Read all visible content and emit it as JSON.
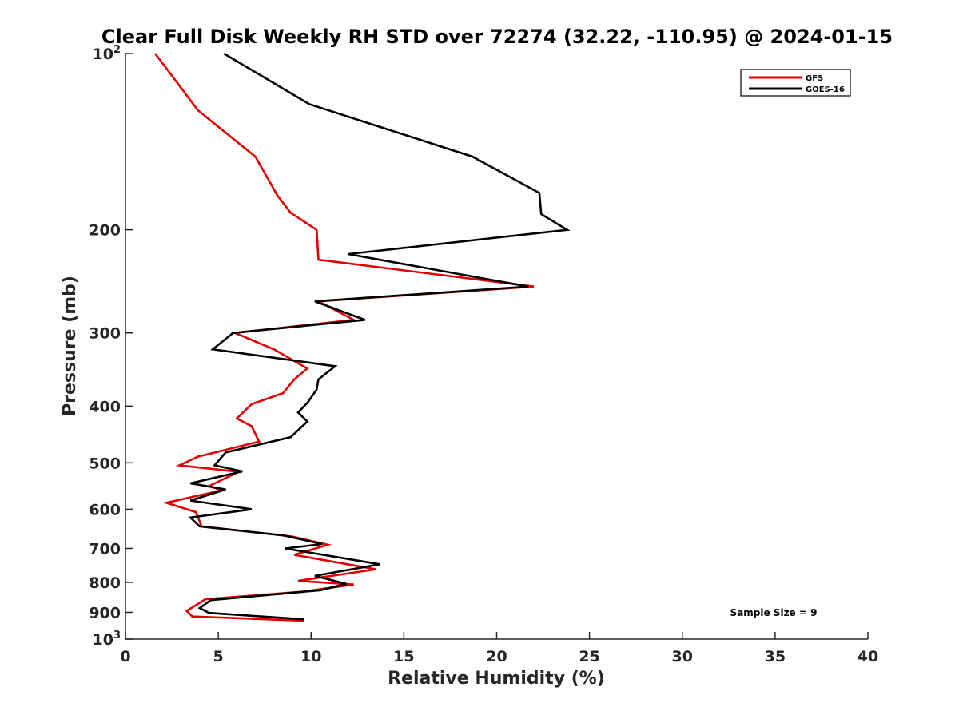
{
  "chart_data": {
    "type": "line",
    "title": "Clear Full Disk Weekly RH STD over 72274 (32.22, -110.95) @ 2024-01-15",
    "xlabel": "Relative Humidity (%)",
    "ylabel": "Pressure (mb)",
    "xlim": [
      0,
      40
    ],
    "ylim": [
      100,
      1000
    ],
    "yscale": "log",
    "y_reversed": true,
    "grid": false,
    "legend_position": "top-right",
    "xticks": [
      "0",
      "5",
      "10",
      "15",
      "20",
      "25",
      "30",
      "35",
      "40"
    ],
    "yticks": [
      {
        "value": 100,
        "base": "10",
        "exp": "2"
      },
      {
        "value": 200,
        "text": "200"
      },
      {
        "value": 300,
        "text": "300"
      },
      {
        "value": 400,
        "text": "400"
      },
      {
        "value": 500,
        "text": "500"
      },
      {
        "value": 600,
        "text": "600"
      },
      {
        "value": 700,
        "text": "700"
      },
      {
        "value": 800,
        "text": "800"
      },
      {
        "value": 900,
        "text": "900"
      },
      {
        "value": 1000,
        "base": "10",
        "exp": "3"
      }
    ],
    "annotation": "Sample Size = 9",
    "series": [
      {
        "name": "GFS",
        "color": "#e00000",
        "points": [
          [
            1.6,
            100
          ],
          [
            3.9,
            125
          ],
          [
            7.0,
            150
          ],
          [
            8.2,
            175
          ],
          [
            8.9,
            187
          ],
          [
            10.3,
            200
          ],
          [
            10.4,
            225
          ],
          [
            22.0,
            250
          ],
          [
            10.4,
            265
          ],
          [
            12.3,
            285
          ],
          [
            5.9,
            300
          ],
          [
            8.0,
            320
          ],
          [
            9.8,
            345
          ],
          [
            9.1,
            360
          ],
          [
            8.5,
            380
          ],
          [
            6.8,
            397
          ],
          [
            6.0,
            420
          ],
          [
            6.8,
            433
          ],
          [
            7.2,
            460
          ],
          [
            3.9,
            488
          ],
          [
            2.9,
            505
          ],
          [
            6.1,
            518
          ],
          [
            4.5,
            548
          ],
          [
            5.2,
            557
          ],
          [
            2.2,
            585
          ],
          [
            3.8,
            607
          ],
          [
            4.1,
            642
          ],
          [
            9.0,
            668
          ],
          [
            10.9,
            690
          ],
          [
            9.1,
            718
          ],
          [
            13.5,
            760
          ],
          [
            9.3,
            795
          ],
          [
            12.3,
            807
          ],
          [
            9.5,
            830
          ],
          [
            4.3,
            855
          ],
          [
            3.3,
            895
          ],
          [
            3.6,
            915
          ],
          [
            9.6,
            930
          ]
        ]
      },
      {
        "name": "GOES-16",
        "color": "#000000",
        "points": [
          [
            5.3,
            100
          ],
          [
            9.9,
            122
          ],
          [
            18.7,
            150
          ],
          [
            22.3,
            173
          ],
          [
            22.4,
            188
          ],
          [
            23.8,
            200
          ],
          [
            12.0,
            220
          ],
          [
            21.7,
            250
          ],
          [
            10.2,
            265
          ],
          [
            12.9,
            285
          ],
          [
            5.8,
            300
          ],
          [
            4.7,
            320
          ],
          [
            11.3,
            342
          ],
          [
            10.4,
            360
          ],
          [
            10.3,
            375
          ],
          [
            9.8,
            395
          ],
          [
            9.3,
            410
          ],
          [
            9.8,
            425
          ],
          [
            8.9,
            452
          ],
          [
            5.4,
            480
          ],
          [
            4.8,
            505
          ],
          [
            6.3,
            517
          ],
          [
            3.5,
            542
          ],
          [
            5.4,
            555
          ],
          [
            3.5,
            580
          ],
          [
            6.8,
            600
          ],
          [
            3.5,
            620
          ],
          [
            4.0,
            642
          ],
          [
            8.5,
            665
          ],
          [
            10.6,
            688
          ],
          [
            8.6,
            700
          ],
          [
            13.7,
            745
          ],
          [
            10.2,
            780
          ],
          [
            11.9,
            805
          ],
          [
            10.5,
            825
          ],
          [
            4.6,
            858
          ],
          [
            4.0,
            885
          ],
          [
            4.5,
            902
          ],
          [
            9.6,
            925
          ]
        ]
      }
    ]
  }
}
